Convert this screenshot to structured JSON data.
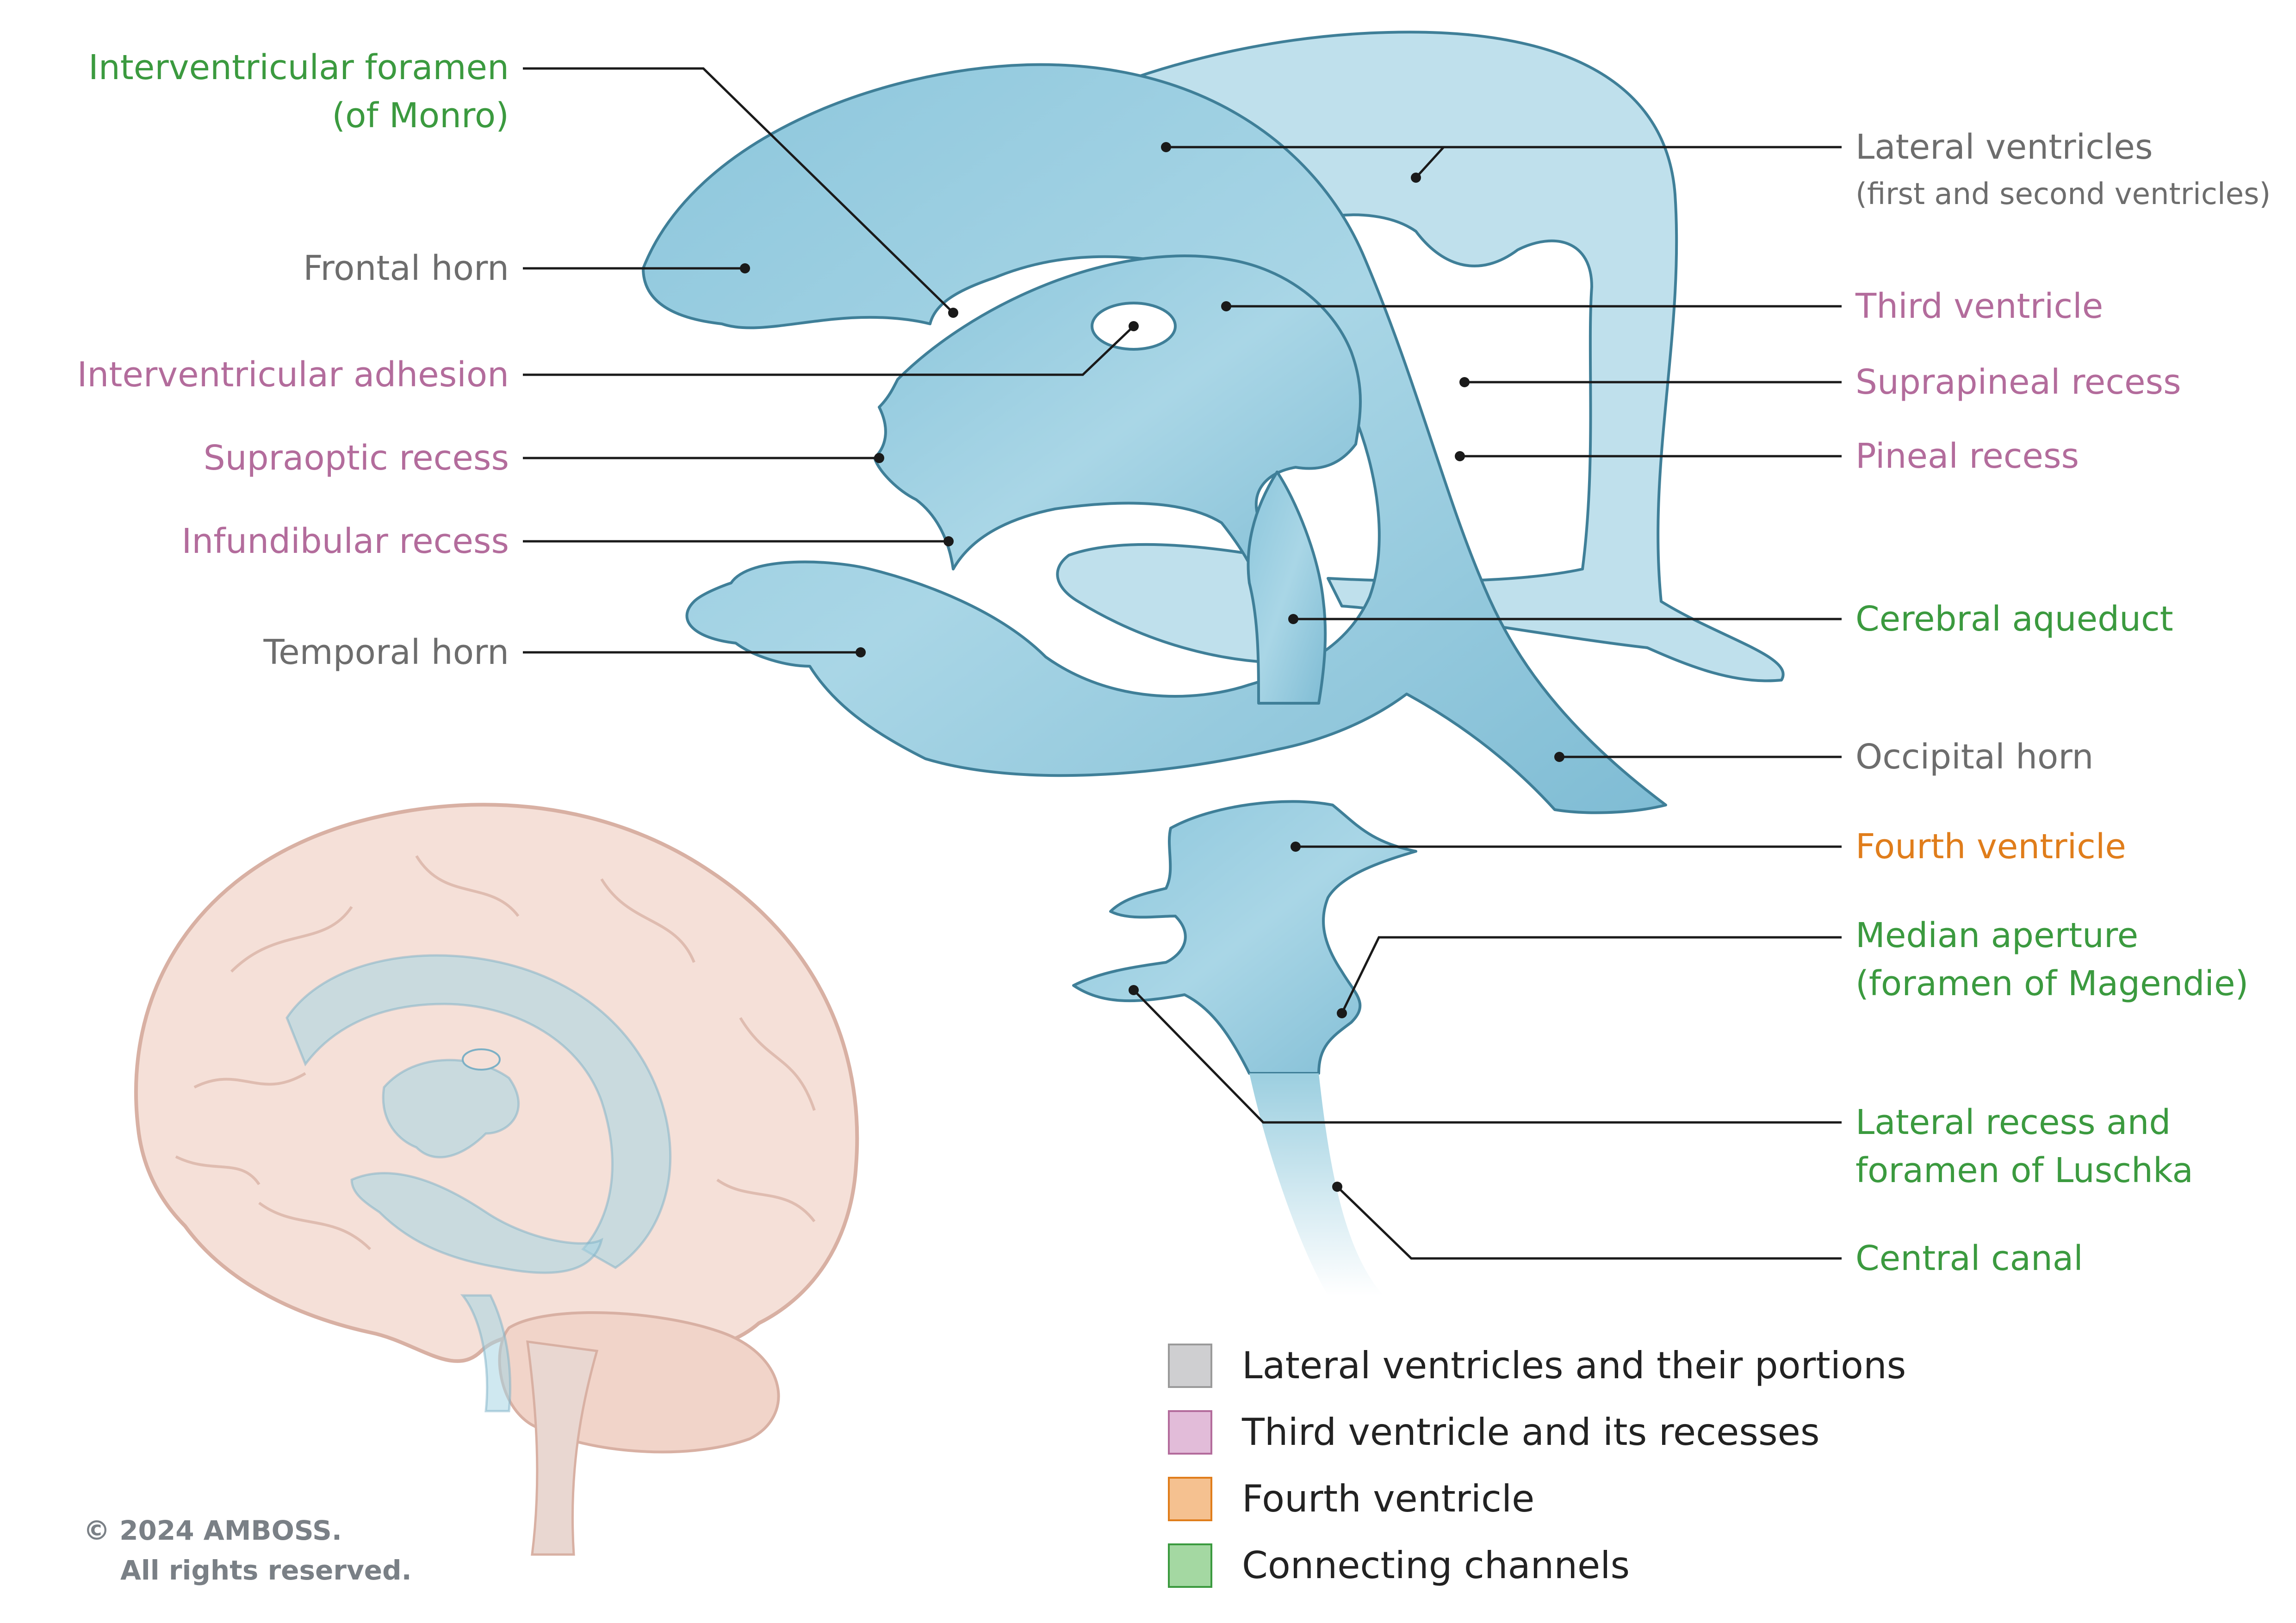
{
  "labels_left": [
    {
      "id": "interventricular-foramen",
      "text": "Interventricular foramen",
      "text2": "(of Monro)",
      "color": "#3b9a3f"
    },
    {
      "id": "frontal-horn",
      "text": "Frontal horn",
      "color": "#6d6d6d"
    },
    {
      "id": "interventricular-adhesion",
      "text": "Interventricular adhesion",
      "color": "#b36c9c"
    },
    {
      "id": "supraoptic-recess",
      "text": "Supraoptic recess",
      "color": "#b36c9c"
    },
    {
      "id": "infundibular-recess",
      "text": "Infundibular recess",
      "color": "#b36c9c"
    },
    {
      "id": "temporal-horn",
      "text": "Temporal horn",
      "color": "#6d6d6d"
    }
  ],
  "labels_right": [
    {
      "id": "lateral-ventricles",
      "text": "Lateral ventricles",
      "text2": "(first and second ventricles)",
      "color": "#6d6d6d"
    },
    {
      "id": "third-ventricle",
      "text": "Third ventricle",
      "color": "#b36c9c"
    },
    {
      "id": "suprapineal-recess",
      "text": "Suprapineal recess",
      "color": "#b36c9c"
    },
    {
      "id": "pineal-recess",
      "text": "Pineal recess",
      "color": "#b36c9c"
    },
    {
      "id": "cerebral-aqueduct",
      "text": "Cerebral aqueduct",
      "color": "#3b9a3f"
    },
    {
      "id": "occipital-horn",
      "text": "Occipital horn",
      "color": "#6d6d6d"
    },
    {
      "id": "fourth-ventricle",
      "text": "Fourth ventricle",
      "color": "#e07d1b"
    },
    {
      "id": "median-aperture",
      "text": "Median aperture",
      "text2": "(foramen of Magendie)",
      "color": "#3b9a3f"
    },
    {
      "id": "lateral-recess",
      "text": "Lateral recess and",
      "text2": "foramen of Luschka",
      "color": "#3b9a3f"
    },
    {
      "id": "central-canal",
      "text": "Central canal",
      "color": "#3b9a3f"
    }
  ],
  "legend": [
    {
      "label": "Lateral ventricles and their portions",
      "fill": "#cfcfd1",
      "border": "#9a9a9a"
    },
    {
      "label": "Third ventricle and its recesses",
      "fill": "#e2bcd9",
      "border": "#b36c9c"
    },
    {
      "label": "Fourth ventricle",
      "fill": "#f5c190",
      "border": "#e07d1b"
    },
    {
      "label": "Connecting channels",
      "fill": "#a4d8a2",
      "border": "#3b9a3f"
    }
  ],
  "copyright": {
    "line1": "© 2024 AMBOSS.",
    "line2": "All rights reserved."
  },
  "colors": {
    "ventricle_fill": "#9ccfe0",
    "ventricle_stroke": "#3f7f98",
    "brain_fill": "#f4ddd4",
    "brain_stroke": "#d4a89a"
  }
}
